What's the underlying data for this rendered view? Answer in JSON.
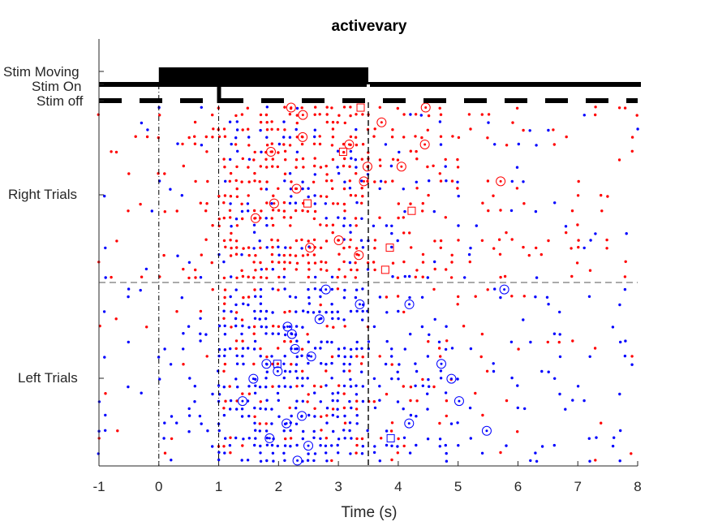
{
  "chart_data": {
    "type": "scatter",
    "title": "activevary",
    "xlabel": "Time (s)",
    "ylabel": "",
    "xlim": [
      -1,
      8
    ],
    "xticks": [
      "-1",
      "0",
      "1",
      "2",
      "3",
      "4",
      "5",
      "6",
      "7",
      "8"
    ],
    "ytick_labels": [
      "Stim Moving",
      "Stim On",
      "Stim off",
      "Right Trials",
      "Left Trials"
    ],
    "grid": false,
    "colors": {
      "right_spikes": "#ff0000",
      "left_spikes": "#0000ff",
      "stim_bars": "#000000",
      "divider": "#555555",
      "event_lines": "#000000"
    },
    "trial_groups": [
      {
        "label": "Right Trials",
        "trials": 24,
        "marker_color": "#ff0000"
      },
      {
        "label": "Left Trials",
        "trials": 24,
        "marker_color": "#0000ff"
      }
    ],
    "stim_tracks": [
      {
        "label": "Stim Moving",
        "style": "thick bar",
        "start": 0,
        "end": 3.5
      },
      {
        "label": "Stim On",
        "style": "solid line",
        "start": -1,
        "end": 8
      },
      {
        "label": "Stim off",
        "style": "dashed line",
        "start": -1,
        "end": 8
      }
    ],
    "event_lines_x": [
      0,
      1,
      3.5
    ],
    "event_markers": [
      {
        "shape": "circle",
        "meaning": "response event"
      },
      {
        "shape": "square",
        "meaning": "trial event"
      }
    ]
  }
}
